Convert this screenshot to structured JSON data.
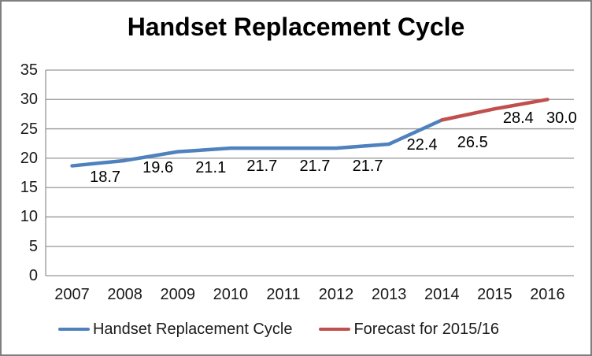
{
  "chart_data": {
    "type": "line",
    "title": "Handset Replacement Cycle",
    "categories": [
      "2007",
      "2008",
      "2009",
      "2010",
      "2011",
      "2012",
      "2013",
      "2014",
      "2015",
      "2016"
    ],
    "series": [
      {
        "name": "Handset Replacement Cycle",
        "color": "#4F81BD",
        "x_indices": [
          0,
          1,
          2,
          3,
          4,
          5,
          6,
          7
        ],
        "values": [
          18.7,
          19.6,
          21.1,
          21.7,
          21.7,
          21.7,
          22.4,
          26.5
        ]
      },
      {
        "name": "Forecast for 2015/16",
        "color": "#C0504D",
        "x_indices": [
          7,
          8,
          9
        ],
        "values": [
          26.5,
          28.4,
          30.0
        ]
      }
    ],
    "point_labels": [
      "18.7",
      "19.6",
      "21.1",
      "21.7",
      "21.7",
      "21.7",
      "22.4",
      "26.5",
      "28.4",
      "30.0"
    ],
    "xlabel": "",
    "ylabel": "",
    "y_axis": {
      "min": 0,
      "max": 35,
      "step": 5,
      "ticks_top_to_bottom": [
        "35",
        "30",
        "25",
        "20",
        "15",
        "10",
        "5",
        "0"
      ]
    },
    "grid": true,
    "legend_position": "bottom"
  }
}
